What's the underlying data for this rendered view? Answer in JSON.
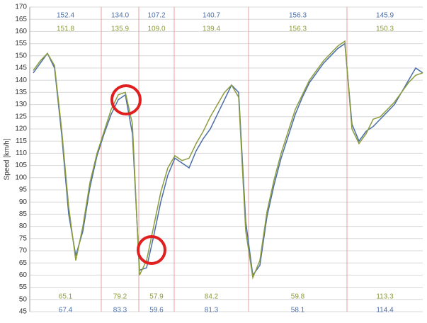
{
  "chart_data": {
    "type": "line",
    "y_label": "Speed [km/h]",
    "categories": [
      null,
      null,
      null,
      null,
      null,
      null,
      null,
      null,
      null,
      null,
      null,
      null,
      null,
      null,
      null,
      null,
      null,
      null,
      null,
      null,
      null,
      null,
      null,
      null,
      null,
      null,
      null,
      null,
      null,
      null,
      null,
      null,
      null,
      null,
      null,
      null,
      null,
      null,
      null,
      null,
      null,
      null,
      null,
      null,
      null,
      null,
      null,
      null,
      null,
      null,
      null,
      null,
      null,
      null,
      null,
      null
    ],
    "series": [
      {
        "color": "#4a6ea8",
        "values": [
          143,
          147,
          151,
          145,
          118,
          85,
          68,
          78,
          96,
          109,
          118,
          126,
          132,
          134,
          118,
          62,
          63,
          76,
          90,
          101,
          108,
          106,
          104,
          111,
          116,
          120,
          126,
          132,
          138,
          135,
          82,
          60,
          64,
          84,
          97,
          108,
          117,
          126,
          133,
          139,
          143,
          147,
          150,
          153,
          155,
          122,
          115,
          119,
          121,
          124,
          127,
          130,
          135,
          140,
          145,
          143
        ]
      },
      {
        "color": "#8c9c3c",
        "values": [
          144,
          148,
          151,
          146,
          120,
          88,
          66,
          80,
          98,
          110,
          119,
          128,
          134,
          135,
          122,
          60,
          66,
          80,
          94,
          104,
          109,
          107,
          108,
          114,
          119,
          125,
          130,
          135,
          138,
          133,
          78,
          59,
          66,
          86,
          99,
          110,
          119,
          128,
          134,
          140,
          144,
          148,
          151,
          154,
          156,
          120,
          114,
          118,
          124,
          125,
          128,
          131,
          135,
          139,
          142,
          143
        ]
      }
    ],
    "sectors": [
      {
        "top": [
          "152.4",
          "151.8"
        ],
        "bottom": [
          "65.1",
          "67.4"
        ]
      },
      {
        "top": [
          "134.0",
          "135.9"
        ],
        "bottom": [
          "79.2",
          "83.3"
        ]
      },
      {
        "top": [
          "107.2",
          "109.0"
        ],
        "bottom": [
          "57.9",
          "59.6"
        ]
      },
      {
        "top": [
          "140.7",
          "139.4"
        ],
        "bottom": [
          "84.2",
          "81.3"
        ]
      },
      {
        "top": [
          "156.3",
          "156.3"
        ],
        "bottom": [
          "59.8",
          "58.1"
        ]
      },
      {
        "top": [
          "145.9",
          "150.3"
        ],
        "bottom": [
          "113.3",
          "114.4"
        ]
      }
    ],
    "ylim": [
      45,
      170
    ],
    "yticks": [
      45,
      50,
      55,
      60,
      65,
      70,
      75,
      80,
      85,
      90,
      95,
      100,
      105,
      110,
      115,
      120,
      125,
      130,
      135,
      140,
      145,
      150,
      155,
      160,
      165,
      170
    ],
    "grid": true
  }
}
